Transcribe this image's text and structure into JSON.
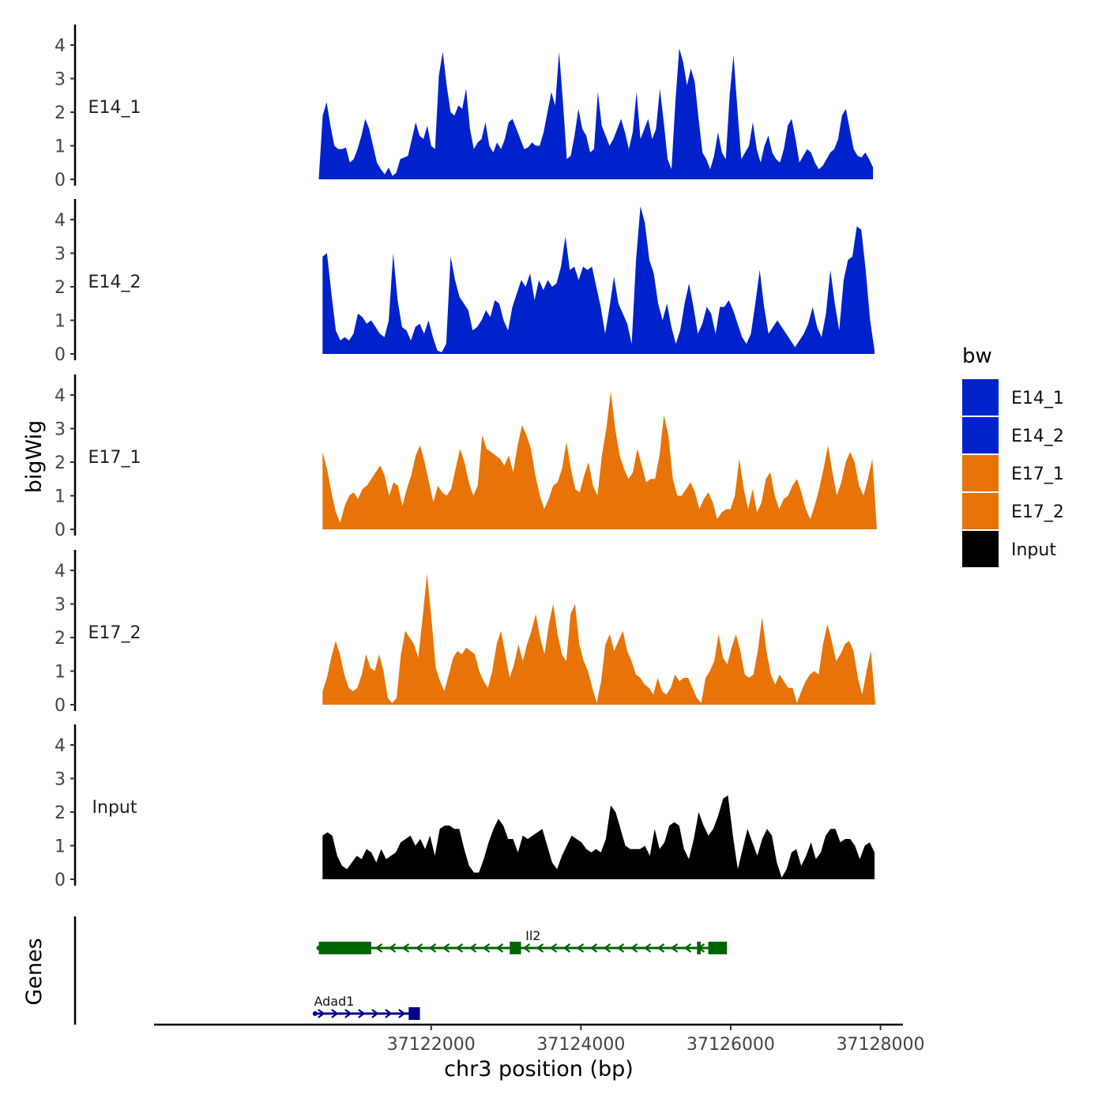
{
  "chart_data": {
    "type": "area",
    "ylabel": "bigWig",
    "xlabel": "chr3 position (bp)",
    "genes_label": "Genes",
    "ylim": [
      0,
      4.6
    ],
    "yticks": [
      0,
      1,
      2,
      3,
      4
    ],
    "xlim": [
      37118300,
      37128300
    ],
    "xticks": [
      37122000,
      37124000,
      37126000,
      37128000
    ],
    "xtick_labels": [
      "37122000",
      "37124000",
      "37126000",
      "37128000"
    ],
    "legend": {
      "title": "bw",
      "position": "right",
      "entries": [
        {
          "name": "E14_1",
          "color": "#0022cc"
        },
        {
          "name": "E14_2",
          "color": "#0022cc"
        },
        {
          "name": "E17_1",
          "color": "#e87308"
        },
        {
          "name": "E17_2",
          "color": "#e87308"
        },
        {
          "name": "Input",
          "color": "#000000"
        }
      ]
    },
    "series": [
      {
        "name": "E14_1",
        "color": "#0022cc",
        "x_start": 37120500,
        "x_end": 37127900,
        "values": [
          0.05,
          1.9,
          2.3,
          1.6,
          1.0,
          0.9,
          0.9,
          0.95,
          0.5,
          0.6,
          0.9,
          1.3,
          1.8,
          1.5,
          1.0,
          0.5,
          0.3,
          0.15,
          0.35,
          0.1,
          0.2,
          0.6,
          0.65,
          0.7,
          1.2,
          1.7,
          1.3,
          1.2,
          1.6,
          1.0,
          0.9,
          3.1,
          3.8,
          2.8,
          2.0,
          1.9,
          2.2,
          2.1,
          2.7,
          1.5,
          0.9,
          1.1,
          1.2,
          1.7,
          1.0,
          0.8,
          1.1,
          0.9,
          1.2,
          1.7,
          1.8,
          1.5,
          1.2,
          0.9,
          0.95,
          1.1,
          1.0,
          1.0,
          1.4,
          2.0,
          2.6,
          2.2,
          3.8,
          2.3,
          0.6,
          0.7,
          1.3,
          2.1,
          1.5,
          1.3,
          0.8,
          0.9,
          2.6,
          1.6,
          1.3,
          1.0,
          1.2,
          1.5,
          1.8,
          1.4,
          0.9,
          1.4,
          2.6,
          1.2,
          1.5,
          1.8,
          1.2,
          1.5,
          2.7,
          1.7,
          0.6,
          0.3,
          2.3,
          3.9,
          3.5,
          2.8,
          3.3,
          2.9,
          1.8,
          0.8,
          0.6,
          0.3,
          0.7,
          1.4,
          0.8,
          0.6,
          2.5,
          3.7,
          2.1,
          0.6,
          0.8,
          1.0,
          1.7,
          0.9,
          0.5,
          1.0,
          1.3,
          0.8,
          0.6,
          0.5,
          0.9,
          1.6,
          1.8,
          1.2,
          0.5,
          0.7,
          0.9,
          0.8,
          0.5,
          0.3,
          0.4,
          0.6,
          0.8,
          0.9,
          1.2,
          1.9,
          2.1,
          1.5,
          0.9,
          0.7,
          0.65,
          0.8,
          0.6,
          0.35
        ]
      },
      {
        "name": "E14_2",
        "color": "#0022cc",
        "x_start": 37120550,
        "x_end": 37127920,
        "values": [
          2.9,
          3.0,
          1.8,
          0.7,
          0.4,
          0.5,
          0.4,
          0.6,
          1.2,
          1.1,
          0.9,
          1.0,
          0.8,
          0.6,
          0.5,
          1.0,
          3.0,
          1.6,
          0.8,
          0.7,
          0.4,
          0.8,
          0.9,
          0.6,
          1.0,
          0.5,
          0.1,
          0.05,
          0.3,
          2.9,
          2.2,
          1.7,
          1.5,
          1.3,
          0.7,
          0.8,
          1.0,
          1.3,
          1.1,
          1.6,
          1.5,
          1.0,
          0.7,
          1.4,
          1.8,
          2.2,
          2.0,
          2.4,
          1.6,
          2.2,
          1.9,
          2.2,
          2.0,
          2.1,
          2.6,
          3.5,
          2.5,
          2.6,
          2.2,
          2.6,
          2.5,
          2.6,
          2.0,
          1.4,
          0.6,
          1.4,
          2.3,
          1.5,
          1.2,
          0.9,
          0.3,
          2.8,
          4.4,
          3.9,
          2.8,
          2.4,
          1.5,
          1.0,
          1.5,
          0.8,
          0.3,
          0.7,
          1.5,
          2.1,
          1.4,
          0.6,
          0.9,
          1.4,
          1.2,
          0.6,
          1.4,
          1.4,
          1.6,
          1.3,
          0.9,
          0.5,
          0.3,
          0.6,
          1.5,
          2.5,
          1.4,
          0.6,
          0.8,
          1.0,
          0.8,
          0.6,
          0.4,
          0.2,
          0.4,
          0.6,
          0.9,
          1.4,
          0.8,
          0.5,
          1.2,
          2.5,
          1.5,
          0.7,
          2.2,
          2.8,
          2.9,
          3.8,
          3.7,
          2.5,
          1.0,
          0.1
        ]
      },
      {
        "name": "E17_1",
        "color": "#e87308",
        "x_start": 37120550,
        "x_end": 37127950,
        "values": [
          2.3,
          1.8,
          1.1,
          0.5,
          0.2,
          0.7,
          1.0,
          1.1,
          0.9,
          1.2,
          1.3,
          1.5,
          1.7,
          1.9,
          1.6,
          1.0,
          1.4,
          1.3,
          0.7,
          1.2,
          1.6,
          2.2,
          2.5,
          2.0,
          1.4,
          0.8,
          1.3,
          1.1,
          1.0,
          1.2,
          1.8,
          2.4,
          2.0,
          1.4,
          1.0,
          1.3,
          2.8,
          2.4,
          2.3,
          2.2,
          2.1,
          1.9,
          2.2,
          1.7,
          2.5,
          3.1,
          2.8,
          2.4,
          1.6,
          1.0,
          0.6,
          0.9,
          1.3,
          1.4,
          1.8,
          2.6,
          1.8,
          1.2,
          1.1,
          1.6,
          2.0,
          1.3,
          1.0,
          2.2,
          3.0,
          4.1,
          3.0,
          2.2,
          1.8,
          1.5,
          1.7,
          2.4,
          1.9,
          1.4,
          1.5,
          1.5,
          2.2,
          3.4,
          2.8,
          1.5,
          1.0,
          1.0,
          1.2,
          1.4,
          1.1,
          0.6,
          0.9,
          1.1,
          0.8,
          0.3,
          0.5,
          0.6,
          0.6,
          1.0,
          2.1,
          1.2,
          0.6,
          1.2,
          0.5,
          0.8,
          1.5,
          1.7,
          1.0,
          0.6,
          0.9,
          1.0,
          1.3,
          1.5,
          1.1,
          0.6,
          0.3,
          0.7,
          1.2,
          1.8,
          2.5,
          1.7,
          1.0,
          1.4,
          2.0,
          2.3,
          2.0,
          1.3,
          1.0,
          1.5,
          2.1,
          0.05
        ]
      },
      {
        "name": "E17_2",
        "color": "#e87308",
        "x_start": 37120550,
        "x_end": 37127930,
        "values": [
          0.4,
          0.8,
          1.4,
          1.9,
          1.5,
          0.9,
          0.5,
          0.4,
          0.5,
          0.9,
          1.5,
          1.1,
          1.0,
          1.5,
          1.0,
          0.2,
          0.05,
          0.2,
          1.5,
          2.2,
          2.0,
          1.8,
          1.4,
          2.6,
          3.9,
          2.6,
          1.1,
          0.7,
          0.4,
          0.9,
          1.4,
          1.6,
          1.5,
          1.7,
          1.6,
          1.5,
          1.0,
          0.7,
          0.5,
          1.0,
          1.8,
          2.2,
          1.5,
          0.8,
          1.2,
          1.8,
          1.3,
          1.8,
          2.2,
          2.7,
          2.0,
          1.5,
          2.4,
          3.0,
          2.1,
          1.5,
          1.3,
          2.7,
          3.0,
          1.8,
          1.3,
          1.0,
          0.5,
          0.05,
          0.7,
          1.8,
          2.1,
          1.6,
          1.9,
          2.2,
          1.6,
          1.3,
          0.9,
          0.8,
          0.6,
          0.5,
          0.3,
          0.8,
          0.4,
          0.3,
          0.5,
          0.9,
          0.7,
          0.8,
          0.8,
          0.5,
          0.2,
          0.05,
          0.8,
          1.0,
          1.3,
          2.1,
          1.4,
          1.2,
          1.7,
          2.1,
          1.6,
          0.9,
          0.8,
          0.9,
          1.6,
          2.6,
          1.6,
          0.9,
          0.6,
          0.9,
          0.7,
          0.5,
          0.5,
          0.05,
          0.4,
          0.7,
          0.9,
          1.0,
          0.9,
          1.8,
          2.4,
          1.9,
          1.3,
          1.5,
          1.8,
          1.9,
          1.6,
          0.8,
          0.3,
          1.0,
          1.6,
          0.05
        ]
      },
      {
        "name": "Input",
        "color": "#000000",
        "x_start": 37120550,
        "x_end": 37127920,
        "values": [
          1.3,
          1.4,
          1.3,
          0.7,
          0.4,
          0.3,
          0.5,
          0.7,
          0.6,
          0.9,
          0.8,
          0.5,
          0.9,
          0.6,
          0.7,
          0.8,
          1.1,
          1.2,
          1.3,
          1.0,
          1.2,
          0.9,
          1.3,
          0.7,
          1.5,
          1.6,
          1.6,
          1.5,
          1.5,
          0.9,
          0.4,
          0.2,
          0.2,
          0.6,
          1.1,
          1.5,
          1.8,
          1.6,
          1.2,
          1.2,
          0.8,
          1.3,
          1.2,
          1.3,
          1.4,
          1.5,
          1.0,
          0.5,
          0.3,
          0.7,
          1.0,
          1.3,
          1.2,
          1.1,
          0.9,
          0.8,
          0.9,
          0.8,
          1.2,
          2.2,
          2.0,
          1.5,
          1.0,
          0.9,
          0.9,
          0.9,
          1.0,
          0.7,
          1.5,
          0.9,
          1.1,
          1.6,
          1.7,
          1.6,
          0.9,
          0.6,
          1.2,
          2.0,
          1.6,
          1.3,
          1.5,
          1.9,
          2.4,
          2.5,
          1.3,
          0.3,
          0.9,
          1.5,
          1.1,
          0.7,
          1.2,
          1.5,
          1.3,
          0.5,
          0.05,
          0.3,
          0.8,
          0.9,
          0.4,
          0.7,
          1.1,
          0.6,
          0.8,
          1.3,
          1.5,
          1.5,
          1.1,
          1.2,
          1.2,
          1.0,
          0.6,
          1.0,
          1.1,
          0.8
        ]
      }
    ],
    "genes": [
      {
        "name": "Il2",
        "strand": "-",
        "color": "#006400",
        "start": 37120500,
        "end": 37125950,
        "exons": [
          [
            37120500,
            37121200
          ],
          [
            37123050,
            37123200
          ],
          [
            37125550,
            37125600
          ],
          [
            37125700,
            37125950
          ]
        ]
      },
      {
        "name": "Adad1",
        "strand": "+",
        "color": "#00008b",
        "start": 37120450,
        "end": 37121850,
        "exons": [
          [
            37121700,
            37121850
          ]
        ]
      }
    ]
  }
}
